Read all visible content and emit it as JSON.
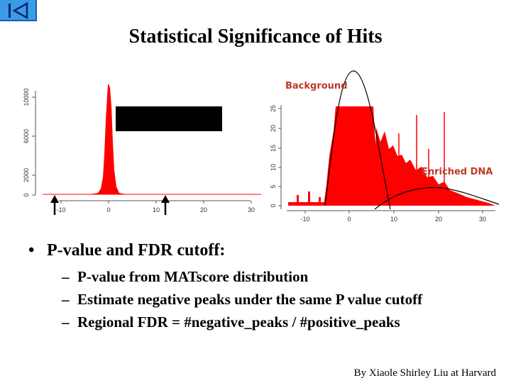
{
  "slide": {
    "title": "Statistical Significance of Hits",
    "credit": "By Xiaole Shirley Liu at Harvard"
  },
  "nav": {
    "icon": "skip-back-icon"
  },
  "plots": {
    "left": {
      "y_ticks": [
        "0",
        "2000",
        "6000",
        "10000"
      ],
      "x_ticks": [
        "-10",
        "0",
        "10",
        "20",
        "30"
      ]
    },
    "right": {
      "label_background": "Background",
      "label_enriched": "Enriched DNA",
      "y_ticks": [
        "0",
        "5",
        "10",
        "15",
        "20",
        "25"
      ],
      "x_ticks": [
        "-10",
        "0",
        "10",
        "20",
        "30"
      ]
    }
  },
  "bullets": {
    "main": "P-value and FDR cutoff:",
    "items": [
      "P-value from MATscore distribution",
      "Estimate negative peaks under the same P value cutoff",
      "Regional FDR = #negative_peaks / #positive_peaks"
    ]
  },
  "colors": {
    "histogram": "#ff0000",
    "nav": "#3a9be8"
  }
}
